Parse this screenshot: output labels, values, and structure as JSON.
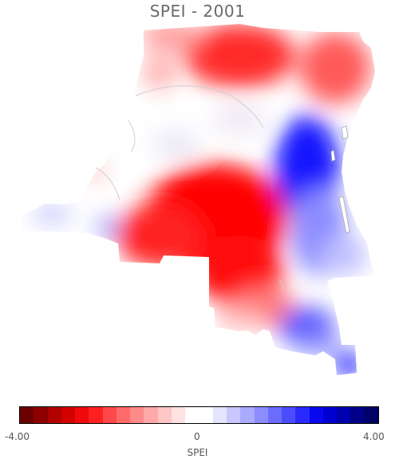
{
  "title": "SPEI - 2001",
  "colorbar": {
    "label": "SPEI",
    "min_label": "-4.00",
    "mid_label": "0",
    "max_label": "4.00",
    "colors": [
      "#6b0000",
      "#8e0000",
      "#b00000",
      "#d40000",
      "#ee0a0a",
      "#ff2020",
      "#ff4848",
      "#ff6a6a",
      "#ff8a8a",
      "#ffa8a8",
      "#ffc6c6",
      "#ffe2e2",
      "#ffffff",
      "#ffffff",
      "#e4e4ff",
      "#c8c8ff",
      "#aaaaff",
      "#8c8cff",
      "#6c6cff",
      "#4c4cff",
      "#2a2aff",
      "#0808f0",
      "#0000d0",
      "#0000ac",
      "#000088",
      "#000066"
    ]
  },
  "colors": {
    "red": "#ff0000",
    "blue": "#0000ff",
    "neutral": "#ffffff",
    "border": "#cfcfcf"
  }
}
